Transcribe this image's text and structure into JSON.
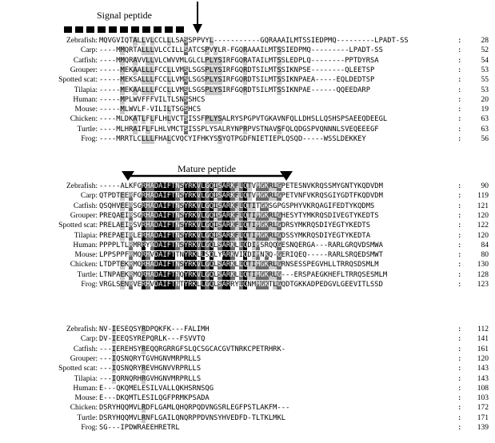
{
  "annotations": {
    "signal_peptide": "Signal peptide",
    "mature_peptide": "Mature peptide"
  },
  "blocks": [
    {
      "rows": [
        {
          "name": "Zebrafish:",
          "seq": "MQVGVIQTALLVLCCLLLSASSPPVYL-----------GQRAAAILMTSSIEDPMQ---------LPADT-SS",
          "end": "28"
        },
        {
          "name": "Carp:",
          "seq": "----MMQRTALLLVLCCILLSATCSPVYLR-FGQRAAAILMTSSIEDPMQ---------LPADT-SS",
          "end": "52"
        },
        {
          "name": "Catfish:",
          "seq": "----MMQRAVVLLVLCWVVMLGLCLPLYSIRFGQRATAILMTSSLEDPLQ--------PPTDYRSA",
          "end": "54"
        },
        {
          "name": "Grouper:",
          "seq": "-----MEKAALLLFCCLLVMSLSGSPLYSIRFGQRDTSILMTSSIKNPSE--------QLEETSP",
          "end": "53"
        },
        {
          "name": "Spotted scat:",
          "seq": "-----MEKSALLLFCCLLVMSLSGSPLYSIRFGQRDTSILMTSSIKNPAEA-----EQLDEDTSP",
          "end": "55"
        },
        {
          "name": "Tilapia:",
          "seq": "-----MEKAALLLFCCLLVMSLSGSPLYSIRFGQRDTSILMTSSIKNPAE------QQEEDARP",
          "end": "53"
        },
        {
          "name": "Human:",
          "seq": "-----MPLWVFFFVILTLSNSSHCS",
          "end": "20"
        },
        {
          "name": "Mouse:",
          "seq": "-----MLWVLF-VILILTSGSHCS",
          "end": "19"
        },
        {
          "name": "Chicken:",
          "seq": "----MLDKATLFLFLHLVCTSISSFPLYSALRYSPGPVTGKAVNFQLLDHSLLQSHSPSAEEQDEEGL",
          "end": "63"
        },
        {
          "name": "Turtle:",
          "seq": "----MLHRAIFLFLHLVMCTSISSPLYSALRYNPRPVSTNAVSFQLQDGSPVQNNNLSVEQEEEGF",
          "end": "63"
        },
        {
          "name": "Frog:",
          "seq": "----MRRTLCLLLFHALCVQCYIFHKYSSYQTPGDFNIETIEPLQSQD-----WSSLDEKKEY",
          "end": "56"
        }
      ]
    },
    {
      "rows": [
        {
          "name": "Zebrafish:",
          "seq": "-----ALKFGRHADAIFTNSYRKVLGQISARKFLQTVMGKRLGPETESNVKRQSSMYGNTYKQDVDM",
          "end": "90"
        },
        {
          "name": "Carp:",
          "seq": "QTPDTEERFGRHADAIFTNSYRKVLGQISARKFLQTVMGKRLGPETVNFVKRQSGIYGDTFKQDVDM",
          "end": "119"
        },
        {
          "name": "Catfish:",
          "seq": "QSQHVEERSGRHADAIFTNSYRKVLGQISARKFLQTITGKSGPGSPHYVKRQAGIFEDTYKQDMS",
          "end": "121"
        },
        {
          "name": "Grouper:",
          "seq": "PREQAEIRSGRHADAIFTNSYRKVLGQISARKFLQTIMGKRLGHESYTYMKRQSDIVEGTYKEDTS",
          "end": "120"
        },
        {
          "name": "Spotted scat:",
          "seq": "PRELAEIRSVRHADAIFTNSYRKVLGQISARKFLQTIMGKRLGDRSYMKRQSDIYEGTYKEDTS",
          "end": "122"
        },
        {
          "name": "Tilapia:",
          "seq": "PREPAEIRLERHADAIFTNSYRKVLGQISARKFLQTIMGKRLGDSSYMKRQSDIYEGTYKEDTA",
          "end": "120"
        },
        {
          "name": "Human:",
          "seq": "PPPPLTLRMRRYADAIFTNSYRKVLGQLSARKLLQDIMSRQQGESNQERGA---RARLGRQVDSMWA",
          "end": "84"
        },
        {
          "name": "Mouse:",
          "seq": "LPPSPPFRMQRHVDAIFTTNYRKLLSQLYARKVIQDIMNKQ-GERIQEQ-----RARLSRQEDSMWT",
          "end": "80"
        },
        {
          "name": "Chicken:",
          "seq": "LTDPTEKRMQRHADAIFTNSYRKVLGQLSARKLLQTIMGKRLGRNSESSPEGVHLLTRRQSDSMLM",
          "end": "130"
        },
        {
          "name": "Turtle:",
          "seq": "LTNPAEKRMQRHADAIFTNQYRKVLGQLSARKLLQTIMGKRLG---ERSPAEGKHEFLTRRQSESMLM",
          "end": "128"
        },
        {
          "name": "Frog:",
          "seq": "VRGLSENRVERHVDAIFTNTYRKLLGQLSARRYLQNMMGKTLGQDTGKKADPEDGVLGEEVITLSSD",
          "end": "123"
        }
      ]
    },
    {
      "rows": [
        {
          "name": "Zebrafish:",
          "seq": "NV-IESEQSYRDPQKFK---FALIMH",
          "end": "112"
        },
        {
          "name": "Carp:",
          "seq": "DV-IEEQSYREPQRLK---FSVVTQ",
          "end": "141"
        },
        {
          "name": "Catfish:",
          "seq": "---IEREHSYREQQRGRRGFSLQCSGCACGVTNRKCPETRHRK-",
          "end": "161"
        },
        {
          "name": "Grouper:",
          "seq": "---IQSNQRYTGVHGNVMRPRLLS",
          "end": "120"
        },
        {
          "name": "Spotted scat:",
          "seq": "---IQSNQRYREVHGNVVRPRLLS",
          "end": "143"
        },
        {
          "name": "Tilapia:",
          "seq": "---IQRNQRHRGVHGNVMRPRLLS",
          "end": "143"
        },
        {
          "name": "Human:",
          "seq": "E---QKQMELESILVALLQKHSRNSQG",
          "end": "108"
        },
        {
          "name": "Mouse:",
          "seq": "E---DKQMTLESILQGFPRMKPSADA",
          "end": "103"
        },
        {
          "name": "Chicken:",
          "seq": "DSRYHQQMVLRDFLGAMLQHQRPQDVNGSRLEGFPSTLAKFM---",
          "end": "172"
        },
        {
          "name": "Turtle:",
          "seq": "DSRYHQQMVLRNFLGAILQNQRPPDVNSYHVEDFD-TLTKLMKL",
          "end": "171"
        },
        {
          "name": "Frog:",
          "seq": "SG---IPDWRAEEHRETRL",
          "end": "139"
        }
      ]
    }
  ]
}
